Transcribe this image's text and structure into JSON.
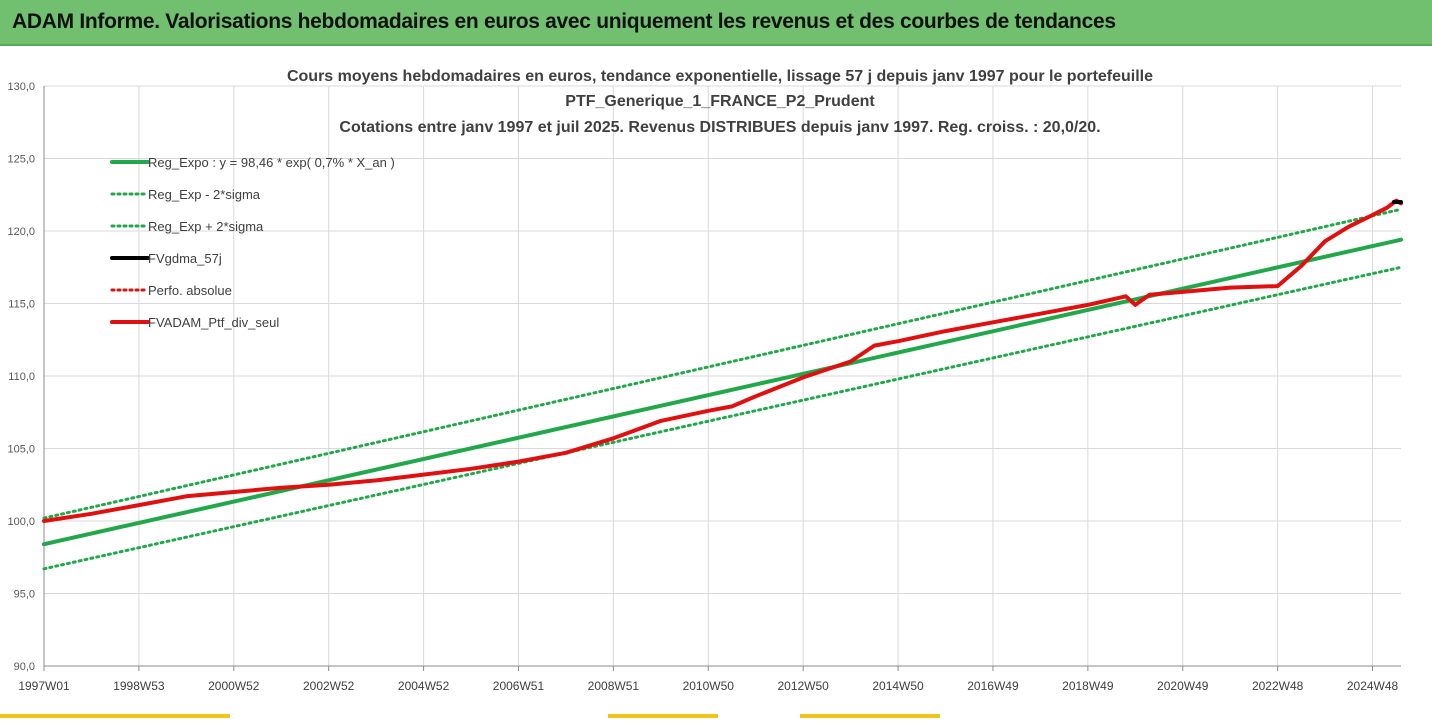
{
  "banner": {
    "title": "ADAM Informe. Valorisations hebdomadaires en euros avec uniquement les revenus et des courbes de tendances"
  },
  "colors": {
    "banner_bg": "#70c070",
    "trend_green": "#22a84a",
    "perf_red": "#e01010",
    "black": "#000000",
    "grid": "#d9d9d9",
    "accent_yellow": "#f0c419"
  },
  "chart_data": {
    "type": "line",
    "title_lines": [
      "Cours moyens hebdomadaires  en euros, tendance exponentielle, lissage 57 j depuis janv 1997 pour le portefeuille",
      "PTF_Generique_1_FRANCE_P2_Prudent",
      "Cotations  entre janv 1997 et juil 2025. Revenus DISTRIBUES depuis janv 1997. Reg. croiss. : 20,0/20."
    ],
    "x_tick_labels": [
      "1997W01",
      "1998W53",
      "2000W52",
      "2002W52",
      "2004W52",
      "2006W51",
      "2008W51",
      "2010W50",
      "2012W50",
      "2014W50",
      "2016W49",
      "2018W49",
      "2020W49",
      "2022W48",
      "2024W48"
    ],
    "x_tick_years": [
      1997.0,
      1999.0,
      2001.0,
      2003.0,
      2005.0,
      2007.0,
      2009.0,
      2011.0,
      2013.0,
      2015.0,
      2017.0,
      2019.0,
      2021.0,
      2023.0,
      2025.0
    ],
    "xlim": [
      1997.0,
      2025.6
    ],
    "ylim": [
      90,
      130
    ],
    "y_ticks": [
      90,
      95,
      100,
      105,
      110,
      115,
      120,
      125,
      130
    ],
    "y_tick_labels": [
      "90,0",
      "95,0",
      "100,0",
      "105,0",
      "110,0",
      "115,0",
      "120,0",
      "125,0",
      "130,0"
    ],
    "grid": true,
    "legend_position": "top-left",
    "legend": [
      {
        "label": "Reg_Expo : y = 98,46 * exp( 0,7% *  X_an )",
        "color": "#22a84a",
        "style": "solid",
        "width": 4
      },
      {
        "label": "Reg_Exp - 2*sigma",
        "color": "#22a84a",
        "style": "dotted",
        "width": 3
      },
      {
        "label": "Reg_Exp + 2*sigma",
        "color": "#22a84a",
        "style": "dotted",
        "width": 3
      },
      {
        "label": "FVgdma_57j",
        "color": "#000000",
        "style": "solid",
        "width": 4
      },
      {
        "label": "Perfo. absolue",
        "color": "#e01010",
        "style": "dotted",
        "width": 3
      },
      {
        "label": "FVADAM_Ptf_div_seul",
        "color": "#e01010",
        "style": "solid",
        "width": 4
      }
    ],
    "series": [
      {
        "name": "Reg_Expo : y = 98,46 * exp( 0,7% *  X_an )",
        "x": [
          1997.0,
          2025.6
        ],
        "y": [
          98.4,
          119.4
        ]
      },
      {
        "name": "Reg_Exp - 2*sigma",
        "x": [
          1997.0,
          2025.6
        ],
        "y": [
          96.7,
          117.5
        ]
      },
      {
        "name": "Reg_Exp + 2*sigma",
        "x": [
          1997.0,
          2025.6
        ],
        "y": [
          100.2,
          121.5
        ]
      },
      {
        "name": "FVADAM_Ptf_div_seul",
        "x": [
          1997.0,
          1998.0,
          1999.0,
          2000.0,
          2001.0,
          2002.0,
          2003.0,
          2004.0,
          2005.0,
          2006.0,
          2007.0,
          2008.0,
          2009.0,
          2010.0,
          2011.0,
          2011.5,
          2012.0,
          2013.0,
          2014.0,
          2014.5,
          2015.0,
          2016.0,
          2017.0,
          2018.0,
          2019.0,
          2019.8,
          2020.0,
          2020.3,
          2021.0,
          2022.0,
          2023.0,
          2023.5,
          2024.0,
          2024.5,
          2025.0,
          2025.3,
          2025.5,
          2025.6
        ],
        "y": [
          100.0,
          100.5,
          101.1,
          101.7,
          102.0,
          102.3,
          102.5,
          102.8,
          103.2,
          103.6,
          104.1,
          104.7,
          105.7,
          106.9,
          107.6,
          107.9,
          108.6,
          109.9,
          111.0,
          112.1,
          112.4,
          113.1,
          113.7,
          114.3,
          114.9,
          115.5,
          114.9,
          115.6,
          115.8,
          116.1,
          116.2,
          117.6,
          119.3,
          120.3,
          121.1,
          121.6,
          122.1,
          121.9
        ]
      },
      {
        "name": "FVgdma_57j",
        "x": [
          2025.45,
          2025.6
        ],
        "y": [
          122.0,
          122.0
        ]
      }
    ]
  }
}
